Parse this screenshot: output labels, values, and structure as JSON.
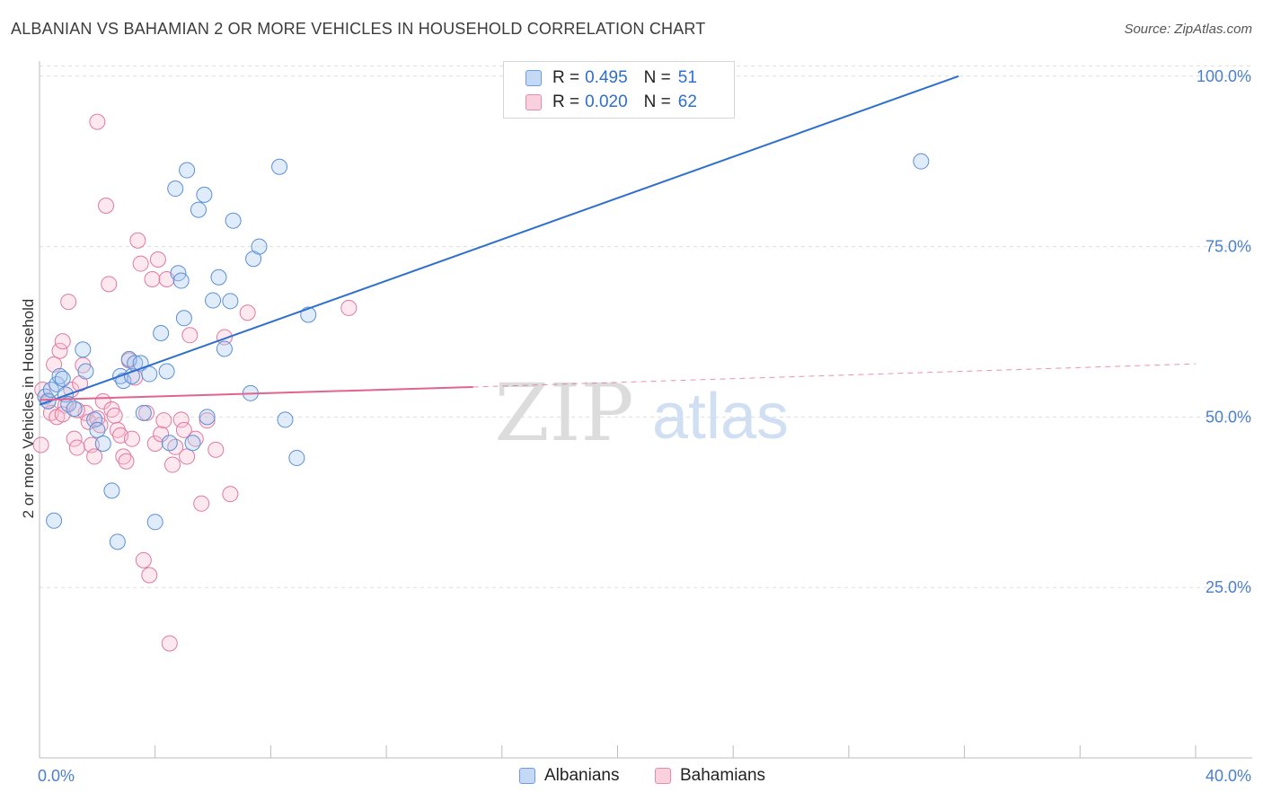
{
  "title": "ALBANIAN VS BAHAMIAN 2 OR MORE VEHICLES IN HOUSEHOLD CORRELATION CHART",
  "source": "Source: ZipAtlas.com",
  "watermark": {
    "zip": "ZIP",
    "atlas": "atlas"
  },
  "legend": {
    "r_label": "R =",
    "n_label": "N =",
    "items": [
      {
        "name": "Albanians",
        "r": "0.495",
        "n": "51",
        "fill": "#a8c8f0",
        "stroke": "#5a8fd8"
      },
      {
        "name": "Bahamians",
        "r": "0.020",
        "n": "62",
        "fill": "#f8bcd0",
        "stroke": "#e07a9c"
      }
    ]
  },
  "colors": {
    "blue_line": "#2f6fcc",
    "pink_line": "#e0648e",
    "axis_text": "#4a7fd0",
    "grid": "#dddddd"
  },
  "chart_data": {
    "type": "scatter",
    "title": "ALBANIAN VS BAHAMIAN 2 OR MORE VEHICLES IN HOUSEHOLD CORRELATION CHART",
    "xlabel": "",
    "ylabel": "2 or more Vehicles in Household",
    "xlim": [
      0,
      40
    ],
    "ylim": [
      0,
      103
    ],
    "x_tick_labels": [
      "0.0%",
      "40.0%"
    ],
    "y_ticks": [
      25,
      50,
      75,
      100
    ],
    "y_tick_labels": [
      "25.0%",
      "50.0%",
      "75.0%",
      "100.0%"
    ],
    "grid": true,
    "series": [
      {
        "name": "Albanians",
        "points": [
          [
            0.2,
            53.0
          ],
          [
            0.3,
            52.3
          ],
          [
            0.4,
            54.0
          ],
          [
            0.5,
            34.8
          ],
          [
            0.6,
            54.8
          ],
          [
            0.7,
            56.0
          ],
          [
            0.8,
            55.6
          ],
          [
            0.9,
            53.3
          ],
          [
            1.0,
            51.9
          ],
          [
            1.2,
            51.2
          ],
          [
            1.5,
            59.9
          ],
          [
            1.6,
            56.7
          ],
          [
            1.9,
            49.6
          ],
          [
            2.0,
            48.1
          ],
          [
            2.2,
            46.1
          ],
          [
            2.5,
            39.2
          ],
          [
            2.7,
            31.7
          ],
          [
            2.8,
            56.0
          ],
          [
            2.9,
            55.3
          ],
          [
            3.1,
            58.5
          ],
          [
            3.2,
            56.0
          ],
          [
            3.3,
            57.9
          ],
          [
            3.5,
            57.9
          ],
          [
            3.6,
            50.6
          ],
          [
            3.8,
            56.3
          ],
          [
            4.0,
            34.6
          ],
          [
            4.2,
            62.3
          ],
          [
            4.4,
            56.7
          ],
          [
            4.5,
            46.2
          ],
          [
            4.7,
            83.5
          ],
          [
            4.8,
            71.1
          ],
          [
            4.9,
            70.0
          ],
          [
            5.0,
            64.5
          ],
          [
            5.1,
            86.2
          ],
          [
            5.3,
            46.2
          ],
          [
            5.5,
            80.4
          ],
          [
            5.7,
            82.6
          ],
          [
            5.8,
            50.0
          ],
          [
            6.0,
            67.1
          ],
          [
            6.2,
            70.5
          ],
          [
            6.4,
            60.0
          ],
          [
            6.6,
            67.0
          ],
          [
            6.7,
            78.8
          ],
          [
            7.3,
            53.5
          ],
          [
            7.4,
            73.2
          ],
          [
            7.6,
            75.0
          ],
          [
            8.3,
            86.7
          ],
          [
            8.5,
            49.6
          ],
          [
            8.9,
            44.0
          ],
          [
            9.3,
            65.0
          ],
          [
            30.5,
            87.5
          ]
        ]
      },
      {
        "name": "Bahamians",
        "points": [
          [
            0.05,
            45.9
          ],
          [
            0.1,
            54.0
          ],
          [
            0.3,
            52.4
          ],
          [
            0.4,
            50.6
          ],
          [
            0.5,
            57.7
          ],
          [
            0.6,
            50.0
          ],
          [
            0.7,
            59.7
          ],
          [
            0.8,
            61.1
          ],
          [
            0.9,
            51.7
          ],
          [
            1.0,
            66.9
          ],
          [
            1.1,
            54.0
          ],
          [
            1.2,
            46.8
          ],
          [
            1.3,
            45.5
          ],
          [
            1.4,
            54.9
          ],
          [
            1.5,
            57.6
          ],
          [
            1.6,
            50.6
          ],
          [
            1.7,
            49.3
          ],
          [
            1.8,
            45.9
          ],
          [
            1.9,
            44.2
          ],
          [
            2.0,
            93.3
          ],
          [
            2.1,
            48.8
          ],
          [
            2.2,
            52.3
          ],
          [
            2.3,
            81.0
          ],
          [
            2.4,
            69.5
          ],
          [
            2.5,
            51.1
          ],
          [
            2.6,
            50.2
          ],
          [
            2.7,
            48.1
          ],
          [
            2.8,
            47.3
          ],
          [
            2.9,
            44.2
          ],
          [
            3.0,
            43.5
          ],
          [
            3.1,
            58.3
          ],
          [
            3.2,
            46.8
          ],
          [
            3.3,
            55.8
          ],
          [
            3.4,
            75.9
          ],
          [
            3.5,
            72.5
          ],
          [
            3.6,
            29.0
          ],
          [
            3.7,
            50.6
          ],
          [
            3.8,
            26.8
          ],
          [
            3.9,
            70.2
          ],
          [
            4.0,
            46.1
          ],
          [
            4.1,
            73.1
          ],
          [
            4.2,
            47.5
          ],
          [
            4.3,
            49.5
          ],
          [
            4.4,
            70.2
          ],
          [
            4.5,
            16.8
          ],
          [
            4.6,
            43.0
          ],
          [
            4.7,
            45.6
          ],
          [
            4.9,
            49.6
          ],
          [
            5.0,
            48.1
          ],
          [
            5.1,
            44.2
          ],
          [
            5.2,
            62.0
          ],
          [
            5.4,
            46.8
          ],
          [
            5.6,
            37.3
          ],
          [
            5.8,
            49.5
          ],
          [
            6.1,
            45.2
          ],
          [
            6.4,
            61.7
          ],
          [
            6.6,
            38.7
          ],
          [
            7.2,
            65.3
          ],
          [
            10.7,
            66.0
          ],
          [
            1.3,
            51.0
          ],
          [
            0.8,
            50.4
          ],
          [
            2.0,
            49.8
          ]
        ]
      }
    ],
    "trend_lines": [
      {
        "series": "Albanians",
        "x": [
          0,
          31.8
        ],
        "y": [
          51.8,
          100.0
        ],
        "style": "solid"
      },
      {
        "series": "Bahamians",
        "x": [
          0,
          15.0
        ],
        "y": [
          52.5,
          54.4
        ],
        "style": "solid"
      },
      {
        "series": "Bahamians",
        "x": [
          15.0,
          40.0
        ],
        "y": [
          54.4,
          57.8
        ],
        "style": "dashed"
      }
    ]
  }
}
